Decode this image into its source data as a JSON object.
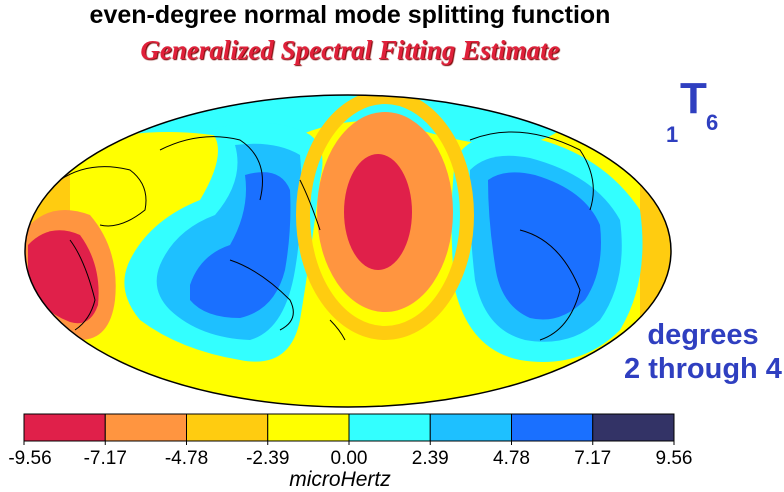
{
  "title": "even-degree normal mode splitting function",
  "subtitle": "Generalized Spectral Fitting Estimate",
  "mode_label": {
    "overtone": "1",
    "type": "T",
    "degree": "6"
  },
  "degrees_note": {
    "line1": "degrees",
    "line2": "2 through 4"
  },
  "colorbar": {
    "ticks": [
      "-9.56",
      "-7.17",
      "-4.78",
      "-2.39",
      "0.00",
      "2.39",
      "4.78",
      "7.17",
      "9.56"
    ],
    "colors": [
      "#e0204a",
      "#ff9540",
      "#ffcc10",
      "#ffff00",
      "#33ffff",
      "#1ec0ff",
      "#1a70ff",
      "#333366"
    ],
    "unit": "microHertz"
  },
  "colors": {
    "title_red": "#e0203a",
    "label_blue": "#2f3fc0"
  }
}
